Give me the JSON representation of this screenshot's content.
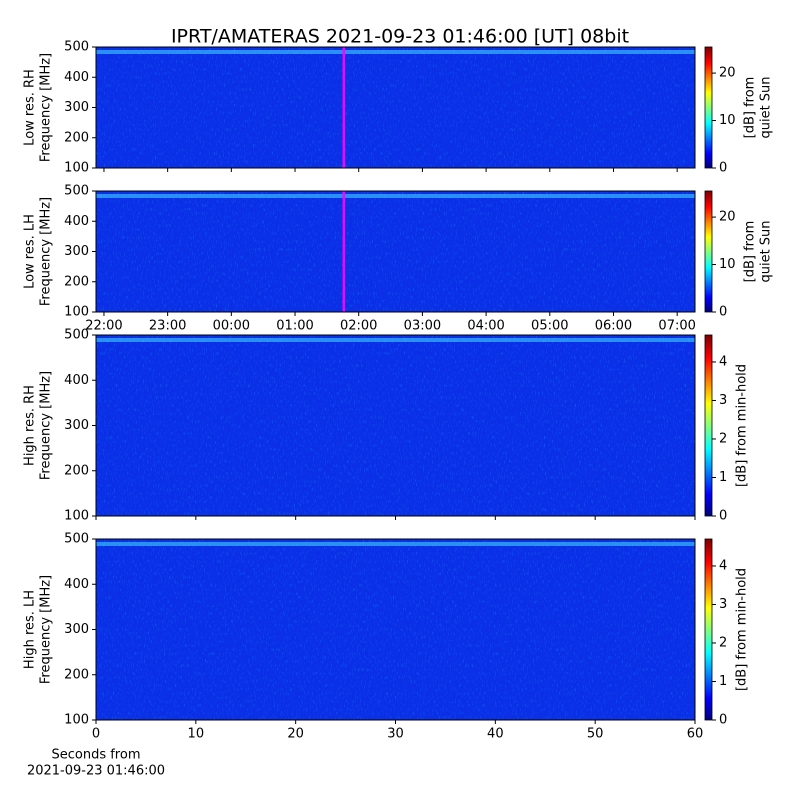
{
  "title": "IPRT/AMATERAS 2021-09-23 01:46:00 [UT]   08bit",
  "chart_data": [
    {
      "type": "spectrogram",
      "ylabel": [
        "Low res. RH",
        "Frequency [MHz]"
      ],
      "ylim": [
        100,
        500
      ],
      "yticks": [
        100,
        200,
        300,
        400,
        500
      ],
      "xlim": [
        21.875,
        31.28
      ],
      "xticks": [
        {
          "value": 22,
          "label": "22:00"
        },
        {
          "value": 23,
          "label": "23:00"
        },
        {
          "value": 24,
          "label": "00:00"
        },
        {
          "value": 25,
          "label": "01:00"
        },
        {
          "value": 26,
          "label": "02:00"
        },
        {
          "value": 27,
          "label": "03:00"
        },
        {
          "value": 28,
          "label": "04:00"
        },
        {
          "value": 29,
          "label": "05:00"
        },
        {
          "value": 30,
          "label": "06:00"
        },
        {
          "value": 31,
          "label": "07:00"
        }
      ],
      "xtick_labels": false,
      "marker": 25.767,
      "marker_color": "#ff00ff",
      "colorbar": {
        "label": [
          "[dB] from",
          "quiet Sun"
        ],
        "lim": [
          0,
          25.5
        ],
        "ticks": [
          0,
          10,
          20
        ]
      }
    },
    {
      "type": "spectrogram",
      "ylabel": [
        "Low res. LH",
        "Frequency [MHz]"
      ],
      "ylim": [
        100,
        500
      ],
      "yticks": [
        100,
        200,
        300,
        400,
        500
      ],
      "xlim": [
        21.875,
        31.28
      ],
      "xticks": [
        {
          "value": 22,
          "label": "22:00"
        },
        {
          "value": 23,
          "label": "23:00"
        },
        {
          "value": 24,
          "label": "00:00"
        },
        {
          "value": 25,
          "label": "01:00"
        },
        {
          "value": 26,
          "label": "02:00"
        },
        {
          "value": 27,
          "label": "03:00"
        },
        {
          "value": 28,
          "label": "04:00"
        },
        {
          "value": 29,
          "label": "05:00"
        },
        {
          "value": 30,
          "label": "06:00"
        },
        {
          "value": 31,
          "label": "07:00"
        }
      ],
      "xtick_labels": true,
      "marker": 25.767,
      "marker_color": "#ff00ff",
      "colorbar": {
        "label": [
          "[dB] from",
          "quiet Sun"
        ],
        "lim": [
          0,
          25.5
        ],
        "ticks": [
          0,
          10,
          20
        ]
      }
    },
    {
      "type": "spectrogram",
      "ylabel": [
        "High res. RH",
        "Frequency [MHz]"
      ],
      "ylim": [
        100,
        500
      ],
      "yticks": [
        100,
        200,
        300,
        400,
        500
      ],
      "xlim": [
        0,
        60
      ],
      "xticks": [
        0,
        10,
        20,
        30,
        40,
        50,
        60
      ],
      "xtick_labels": false,
      "colorbar": {
        "label": [
          "[dB] from min-hold"
        ],
        "lim": [
          0,
          4.7
        ],
        "ticks": [
          0,
          1,
          2,
          3,
          4
        ]
      }
    },
    {
      "type": "spectrogram",
      "ylabel": [
        "High res. LH",
        "Frequency [MHz]"
      ],
      "ylim": [
        100,
        500
      ],
      "yticks": [
        100,
        200,
        300,
        400,
        500
      ],
      "xlim": [
        0,
        60
      ],
      "xticks": [
        0,
        10,
        20,
        30,
        40,
        50,
        60
      ],
      "xtick_labels": true,
      "xlabel": [
        "Seconds from",
        "2021-09-23 01:46:00"
      ],
      "colorbar": {
        "label": [
          "[dB] from min-hold"
        ],
        "lim": [
          0,
          4.7
        ],
        "ticks": [
          0,
          1,
          2,
          3,
          4
        ]
      }
    }
  ]
}
